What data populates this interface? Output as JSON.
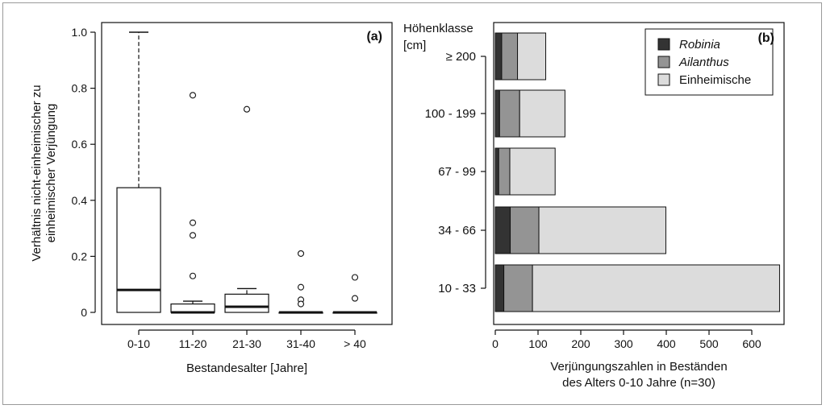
{
  "chart_data": [
    {
      "type": "box",
      "panel_tag": "(a)",
      "xlabel": "Bestandesalter [Jahre]",
      "ylabel_line1": "Verhältnis nicht-einheimischer zu",
      "ylabel_line2": "einheimischer Verjüngung",
      "ylim": [
        0,
        1.05
      ],
      "yticks": [
        0,
        0.2,
        0.4,
        0.6,
        0.8,
        1.0
      ],
      "ytick_labels": [
        "0",
        "0.2",
        "0.4",
        "0.6",
        "0.8",
        "1.0"
      ],
      "categories": [
        "0-10",
        "11-20",
        "21-30",
        "31-40",
        "> 40"
      ],
      "boxes": [
        {
          "category": "0-10",
          "whisker_low": 0,
          "q1": 0,
          "median": 0.08,
          "q3": 0.445,
          "whisker_high": 1.0,
          "outliers": []
        },
        {
          "category": "11-20",
          "whisker_low": 0,
          "q1": 0,
          "median": 0,
          "q3": 0.03,
          "whisker_high": 0.04,
          "outliers": [
            0.775,
            0.32,
            0.275,
            0.13
          ]
        },
        {
          "category": "21-30",
          "whisker_low": 0,
          "q1": 0,
          "median": 0.02,
          "q3": 0.065,
          "whisker_high": 0.085,
          "outliers": [
            0.725
          ]
        },
        {
          "category": "31-40",
          "whisker_low": 0,
          "q1": 0,
          "median": 0,
          "q3": 0,
          "whisker_high": 0,
          "outliers": [
            0.21,
            0.09,
            0.045,
            0.03
          ]
        },
        {
          "category": "> 40",
          "whisker_low": 0,
          "q1": 0,
          "median": 0,
          "q3": 0,
          "whisker_high": 0,
          "outliers": [
            0.125,
            0.05
          ]
        }
      ],
      "grid": false
    },
    {
      "type": "bar",
      "orientation": "horizontal",
      "stacked": true,
      "panel_tag": "(b)",
      "category_title_line1": "Höhenklasse",
      "category_title_line2": "[cm]",
      "xlabel_line1": "Verjüngungszahlen in Beständen",
      "xlabel_line2": "des Alters 0-10 Jahre (n=30)",
      "xlim": [
        0,
        665
      ],
      "xticks": [
        0,
        100,
        200,
        300,
        400,
        500,
        600
      ],
      "xtick_labels": [
        "0",
        "100",
        "200",
        "300",
        "400",
        "500",
        "600"
      ],
      "categories": [
        "≥ 200",
        "100 - 199",
        "67 - 99",
        "34 - 66",
        "10 - 33"
      ],
      "series": [
        {
          "name": "Robinia",
          "color": "#333333",
          "values": [
            15,
            10,
            8,
            35,
            20
          ]
        },
        {
          "name": "Ailanthus",
          "color": "#949494",
          "values": [
            37,
            47,
            26,
            67,
            67
          ]
        },
        {
          "name": "Einheimische",
          "color": "#dcdcdc",
          "values": [
            66,
            106,
            106,
            297,
            578
          ]
        }
      ],
      "legend_position": "top-right",
      "grid": false
    }
  ]
}
